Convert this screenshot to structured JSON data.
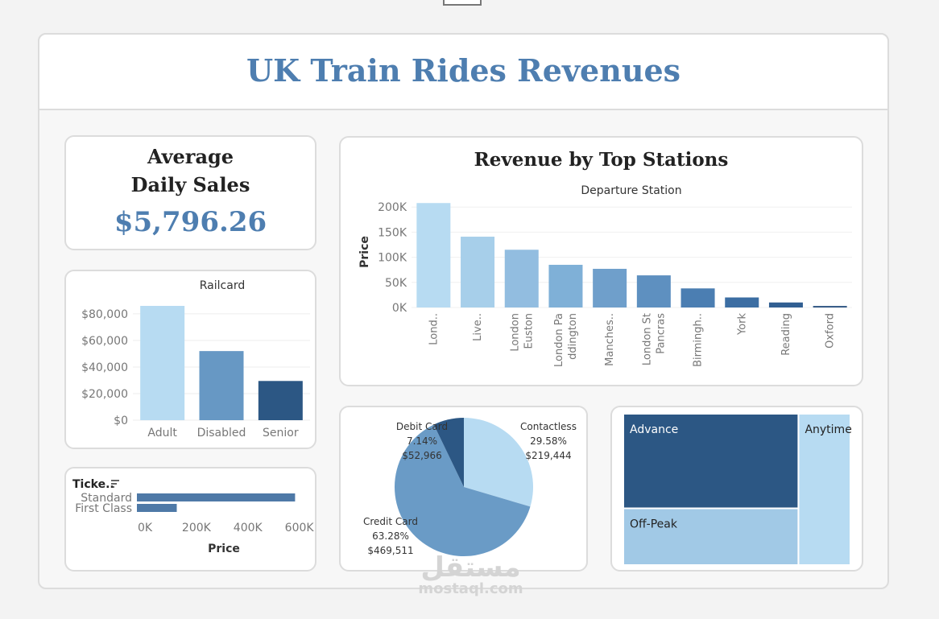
{
  "dashboard": {
    "title": "UK Train Rides Revenues"
  },
  "kpi": {
    "title_line1": "Average",
    "title_line2": "Daily Sales",
    "value": "$5,796.26"
  },
  "chart_data": [
    {
      "id": "railcard",
      "type": "bar",
      "title": "Railcard",
      "categories": [
        "Adult",
        "Disabled",
        "Senior"
      ],
      "values": [
        86000,
        52000,
        29500
      ],
      "ylim": [
        0,
        86000
      ],
      "yticks": [
        0,
        20000,
        40000,
        60000,
        80000
      ],
      "ytick_labels": [
        "$0",
        "$20,000",
        "$40,000",
        "$60,000",
        "$80,000"
      ],
      "colors": [
        "#b7dbf2",
        "#6798c4",
        "#2c5784"
      ],
      "grid": true
    },
    {
      "id": "stations",
      "type": "bar",
      "title": "Revenue by Top Stations",
      "subtitle": "Departure Station",
      "ylabel": "Price",
      "categories": [
        "Lond..",
        "Live..",
        "London Euston",
        "London Paddington",
        "Manches..",
        "London St Pancras",
        "Birmingh..",
        "York",
        "Reading",
        "Oxford"
      ],
      "tick_labels": [
        [
          "Lond.."
        ],
        [
          "Live.."
        ],
        [
          "London",
          "Euston"
        ],
        [
          "London Pa",
          "ddington"
        ],
        [
          "Manches.."
        ],
        [
          "London St",
          "Pancras"
        ],
        [
          "Birmingh.."
        ],
        [
          "York"
        ],
        [
          "Reading"
        ],
        [
          "Oxford"
        ]
      ],
      "values": [
        208000,
        141000,
        115000,
        85000,
        77000,
        64000,
        38000,
        20000,
        10000,
        3000
      ],
      "ylim": [
        0,
        210000
      ],
      "yticks": [
        0,
        50000,
        100000,
        150000,
        200000
      ],
      "ytick_labels": [
        "0K",
        "50K",
        "100K",
        "150K",
        "200K"
      ],
      "colors": [
        "#b7dbf2",
        "#a7cfea",
        "#92bde0",
        "#7fb0d7",
        "#6f9fcb",
        "#5e90c0",
        "#4b7eb2",
        "#3c6ea3",
        "#315f92",
        "#2a5180"
      ],
      "grid": true
    },
    {
      "id": "ticket_class",
      "type": "bar",
      "orientation": "horizontal",
      "title": "Ticke..",
      "xlabel": "Price",
      "categories": [
        "Standard",
        "First Class"
      ],
      "values": [
        615000,
        155000
      ],
      "xlim": [
        0,
        620000
      ],
      "xticks": [
        0,
        200000,
        400000,
        600000
      ],
      "xtick_labels": [
        "0K",
        "200K",
        "400K",
        "600K"
      ],
      "colors": [
        "#4e79a7",
        "#4e79a7"
      ]
    },
    {
      "id": "payment",
      "type": "pie",
      "slices": [
        {
          "label": "Contactless",
          "percent": "29.58%",
          "amount": "$219,444",
          "value": 219444,
          "color": "#b7dbf2"
        },
        {
          "label": "Credit Card",
          "percent": "63.28%",
          "amount": "$469,511",
          "value": 469511,
          "color": "#6a9bc6"
        },
        {
          "label": "Debit Card",
          "percent": "7.14%",
          "amount": "$52,966",
          "value": 52966,
          "color": "#2c5784"
        }
      ]
    },
    {
      "id": "ticket_type",
      "type": "treemap",
      "items": [
        {
          "label": "Advance",
          "value": 400,
          "color": "#2c5784",
          "text_color": "#ffffff"
        },
        {
          "label": "Off-Peak",
          "value": 240,
          "color": "#a1c9e6",
          "text_color": "#222222"
        },
        {
          "label": "Anytime",
          "value": 190,
          "color": "#b7dbf2",
          "text_color": "#222222"
        }
      ]
    }
  ],
  "watermark": {
    "arabic": "مستقل",
    "latin": "mostaql.com"
  }
}
